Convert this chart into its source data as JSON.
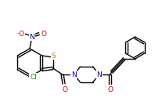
{
  "bg_color": "#ffffff",
  "bond_color": "#000000",
  "atom_colors": {
    "N": "#0000cd",
    "O": "#cc0000",
    "S": "#b8860b",
    "Cl": "#228b22",
    "C": "#000000"
  },
  "figsize": [
    1.98,
    1.39
  ],
  "dpi": 100
}
